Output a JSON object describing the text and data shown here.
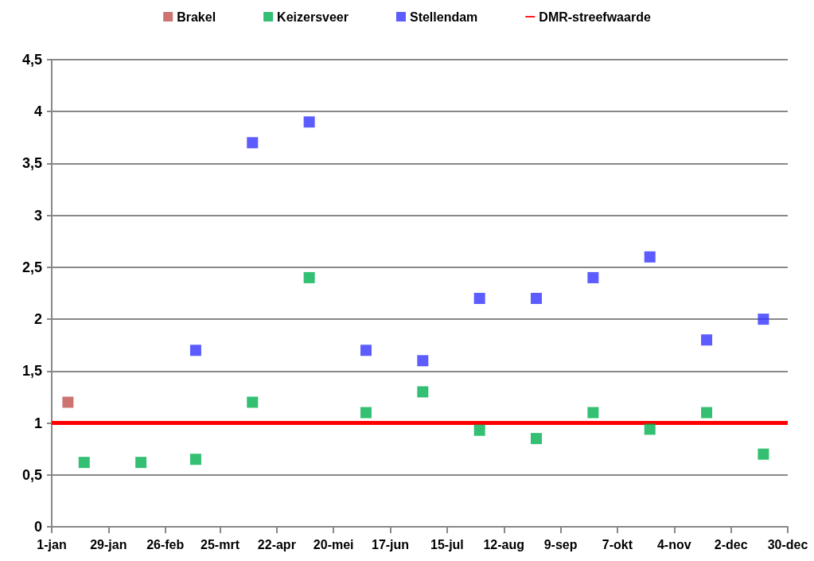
{
  "chart_data": {
    "type": "scatter",
    "marker": "square",
    "legend": "top",
    "grid": "y",
    "xlim": [
      "--01-01",
      "--12-30"
    ],
    "xticks": [
      {
        "value": "--01-01",
        "label": "1-jan"
      },
      {
        "value": "--01-29",
        "label": "29-jan"
      },
      {
        "value": "--02-26",
        "label": "26-feb"
      },
      {
        "value": "--03-25",
        "label": "25-mrt"
      },
      {
        "value": "--04-22",
        "label": "22-apr"
      },
      {
        "value": "--05-20",
        "label": "20-mei"
      },
      {
        "value": "--06-17",
        "label": "17-jun"
      },
      {
        "value": "--07-15",
        "label": "15-jul"
      },
      {
        "value": "--08-12",
        "label": "12-aug"
      },
      {
        "value": "--09-09",
        "label": "9-sep"
      },
      {
        "value": "--10-07",
        "label": "7-okt"
      },
      {
        "value": "--11-04",
        "label": "4-nov"
      },
      {
        "value": "--12-02",
        "label": "2-dec"
      },
      {
        "value": "--12-30",
        "label": "30-dec"
      }
    ],
    "ylim": [
      0,
      4.5
    ],
    "yticks": [
      0,
      {
        "value": 0.5,
        "label": "0,5"
      },
      1,
      {
        "value": 1.5,
        "label": "1,5"
      },
      2,
      {
        "value": 2.5,
        "label": "2,5"
      },
      3,
      {
        "value": 3.5,
        "label": "3,5"
      },
      4,
      {
        "value": 4.5,
        "label": "4,5"
      }
    ],
    "series": [
      {
        "name": "Brakel",
        "color": "#c0504d",
        "x": [
          "--01-09"
        ],
        "values": [
          1.2
        ]
      },
      {
        "name": "Keizersveer",
        "color": "#00b050",
        "x": [
          "--01-17",
          "--02-14",
          "--03-13",
          "--04-10",
          "--05-08",
          "--06-05",
          "--07-03",
          "--07-31",
          "--08-28",
          "--09-25",
          "--10-23",
          "--11-20",
          "--12-18"
        ],
        "values": [
          0.62,
          0.62,
          0.65,
          1.2,
          2.4,
          1.1,
          1.3,
          0.93,
          0.85,
          1.1,
          0.94,
          1.1,
          0.7
        ]
      },
      {
        "name": "Stellendam",
        "color": "#3333ff",
        "x": [
          "--03-13",
          "--04-10",
          "--05-08",
          "--06-05",
          "--07-03",
          "--07-31",
          "--08-28",
          "--09-25",
          "--10-23",
          "--11-20",
          "--12-18"
        ],
        "values": [
          1.7,
          3.7,
          3.9,
          1.7,
          1.6,
          2.2,
          2.2,
          2.4,
          2.6,
          1.8,
          2.0
        ]
      }
    ],
    "ref_lines": [
      {
        "axis": "y",
        "value": 1,
        "label": "DMR-streefwaarde",
        "color": "#ff0000",
        "line_style": "solid"
      }
    ]
  }
}
